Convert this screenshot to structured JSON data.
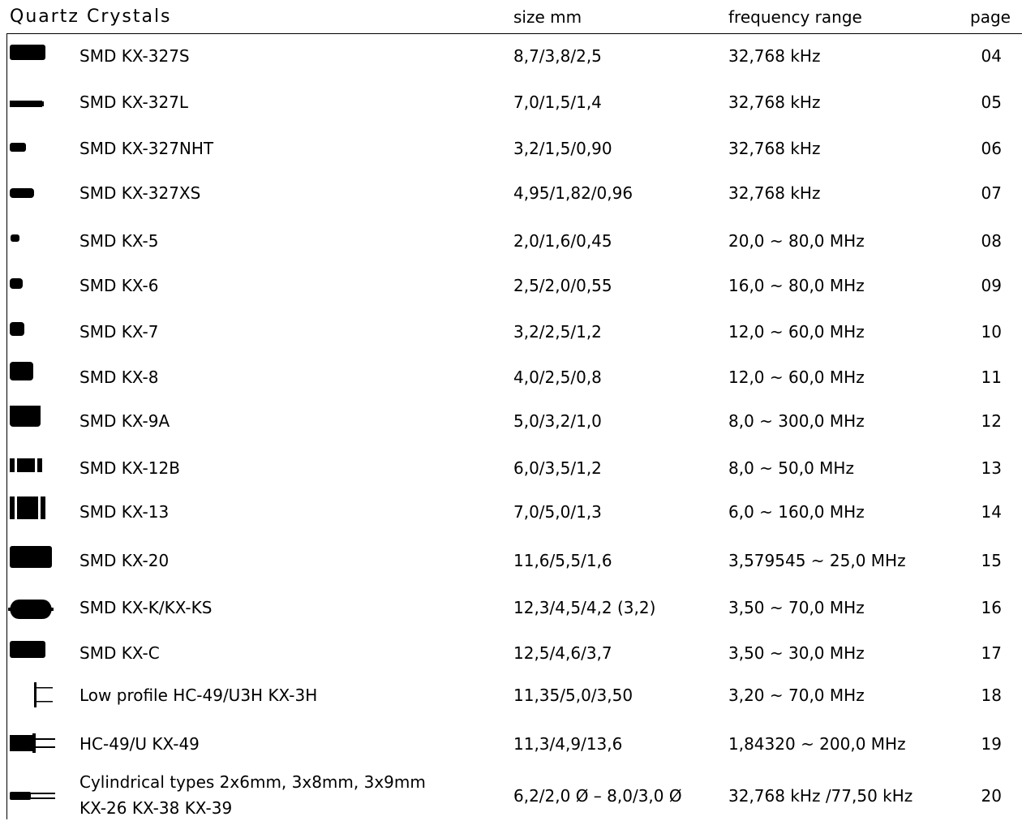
{
  "title": "Quartz Crystals",
  "headers": {
    "size": "size mm",
    "frequency": "frequency range",
    "page": "page"
  },
  "rows": [
    {
      "name": "SMD  KX-327S",
      "size": "8,7/3,8/2,5",
      "frequency": "32,768 kHz",
      "page": "04",
      "icon": "smd-rect-icon"
    },
    {
      "name": "SMD  KX-327L",
      "size": "7,0/1,5/1,4",
      "frequency": "32,768 kHz",
      "page": "05",
      "icon": "smd-slim-icon"
    },
    {
      "name": "SMD  KX-327NHT",
      "size": "3,2/1,5/0,90",
      "frequency": "32,768 kHz",
      "page": "06",
      "icon": "smd-small-icon"
    },
    {
      "name": "SMD  KX-327XS",
      "size": "4,95/1,82/0,96",
      "frequency": "32,768 kHz",
      "page": "07",
      "icon": "smd-small-icon"
    },
    {
      "name": "SMD  KX-5",
      "size": "2,0/1,6/0,45",
      "frequency": "20,0 ~ 80,0 MHz",
      "page": "08",
      "icon": "smd-tiny-icon"
    },
    {
      "name": "SMD  KX-6",
      "size": "2,5/2,0/0,55",
      "frequency": "16,0 ~ 80,0 MHz",
      "page": "09",
      "icon": "smd-tiny-icon"
    },
    {
      "name": "SMD  KX-7",
      "size": "3,2/2,5/1,2",
      "frequency": "12,0 ~ 60,0 MHz",
      "page": "10",
      "icon": "smd-small-square-icon"
    },
    {
      "name": "SMD  KX-8",
      "size": "4,0/2,5/0,8",
      "frequency": "12,0 ~ 60,0 MHz",
      "page": "11",
      "icon": "smd-square-icon"
    },
    {
      "name": "SMD  KX-9A",
      "size": "5,0/3,2/1,0",
      "frequency": "8,0 ~ 300,0 MHz",
      "page": "12",
      "icon": "smd-large-square-icon"
    },
    {
      "name": "SMD  KX-12B",
      "size": "6,0/3,5/1,2",
      "frequency": "8,0 ~ 50,0 MHz",
      "page": "13",
      "icon": "smd-notched-icon"
    },
    {
      "name": "SMD  KX-13",
      "size": "7,0/5,0/1,3",
      "frequency": "6,0 ~ 160,0 MHz",
      "page": "14",
      "icon": "smd-large-notched-icon"
    },
    {
      "name": "SMD  KX-20",
      "size": "11,6/5,5/1,6",
      "frequency": "3,579545 ~ 25,0 MHz",
      "page": "15",
      "icon": "smd-wide-icon"
    },
    {
      "name": "SMD  KX-K/KX-KS",
      "size": "12,3/4,5/4,2 (3,2)",
      "frequency": "3,50 ~ 70,0 MHz",
      "page": "16",
      "icon": "smd-oval-icon"
    },
    {
      "name": "SMD  KX-C",
      "size": "12,5/4,6/3,7",
      "frequency": "3,50 ~ 30,0 MHz",
      "page": "17",
      "icon": "smd-rect-icon"
    },
    {
      "name": "Low profile HC-49/U3H  KX-3H",
      "size": "11,35/5,0/3,50",
      "frequency": "3,20 ~ 70,0 MHz",
      "page": "18",
      "icon": "hc49-lowprofile-icon"
    },
    {
      "name": "HC-49/U  KX-49",
      "size": "11,3/4,9/13,6",
      "frequency": "1,84320 ~ 200,0 MHz",
      "page": "19",
      "icon": "hc49-icon"
    },
    {
      "name": "Cylindrical types 2x6mm, 3x8mm, 3x9mm",
      "name2": "KX-26  KX-38 KX-39",
      "size": "6,2/2,0 Ø – 8,0/3,0 Ø",
      "frequency": "32,768 kHz /77,50 kHz",
      "page": "20",
      "icon": "cylindrical-crystal-icon"
    }
  ]
}
